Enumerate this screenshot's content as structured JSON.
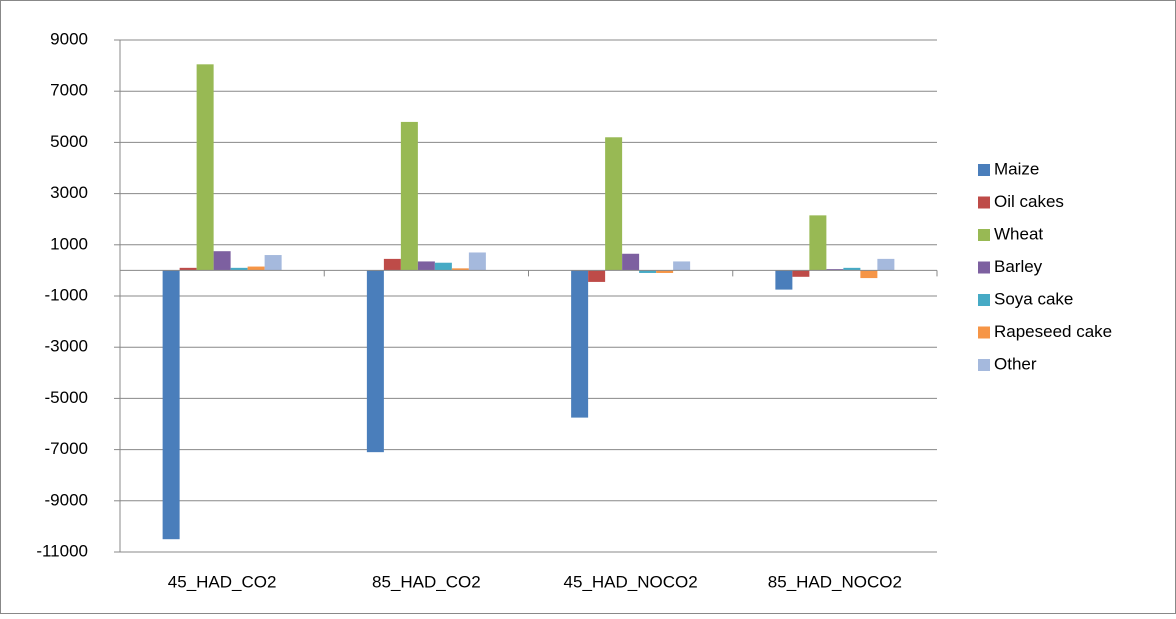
{
  "chart_data": {
    "type": "bar",
    "categories": [
      "45_HAD_CO2",
      "85_HAD_CO2",
      "45_HAD_NOCO2",
      "85_HAD_NOCO2"
    ],
    "series": [
      {
        "name": "Maize",
        "color": "#4a7ebb",
        "values": [
          -10500,
          -7100,
          -5750,
          -750
        ]
      },
      {
        "name": "Oil cakes",
        "color": "#be4b48",
        "values": [
          100,
          450,
          -450,
          -250
        ]
      },
      {
        "name": "Wheat",
        "color": "#98b954",
        "values": [
          8050,
          5800,
          5200,
          2150
        ]
      },
      {
        "name": "Barley",
        "color": "#7d60a0",
        "values": [
          750,
          350,
          650,
          50
        ]
      },
      {
        "name": "Soya cake",
        "color": "#46aac5",
        "values": [
          100,
          300,
          -100,
          100
        ]
      },
      {
        "name": "Rapeseed cake",
        "color": "#f69546",
        "values": [
          150,
          80,
          -100,
          -300
        ]
      },
      {
        "name": "Other",
        "color": "#a5b9dd",
        "values": [
          600,
          700,
          350,
          450
        ]
      }
    ],
    "ylim": [
      -11000,
      9000
    ],
    "yticks": [
      -11000,
      -9000,
      -7000,
      -5000,
      -3000,
      -1000,
      1000,
      3000,
      5000,
      7000,
      9000
    ],
    "grid": true,
    "legend": "right"
  }
}
